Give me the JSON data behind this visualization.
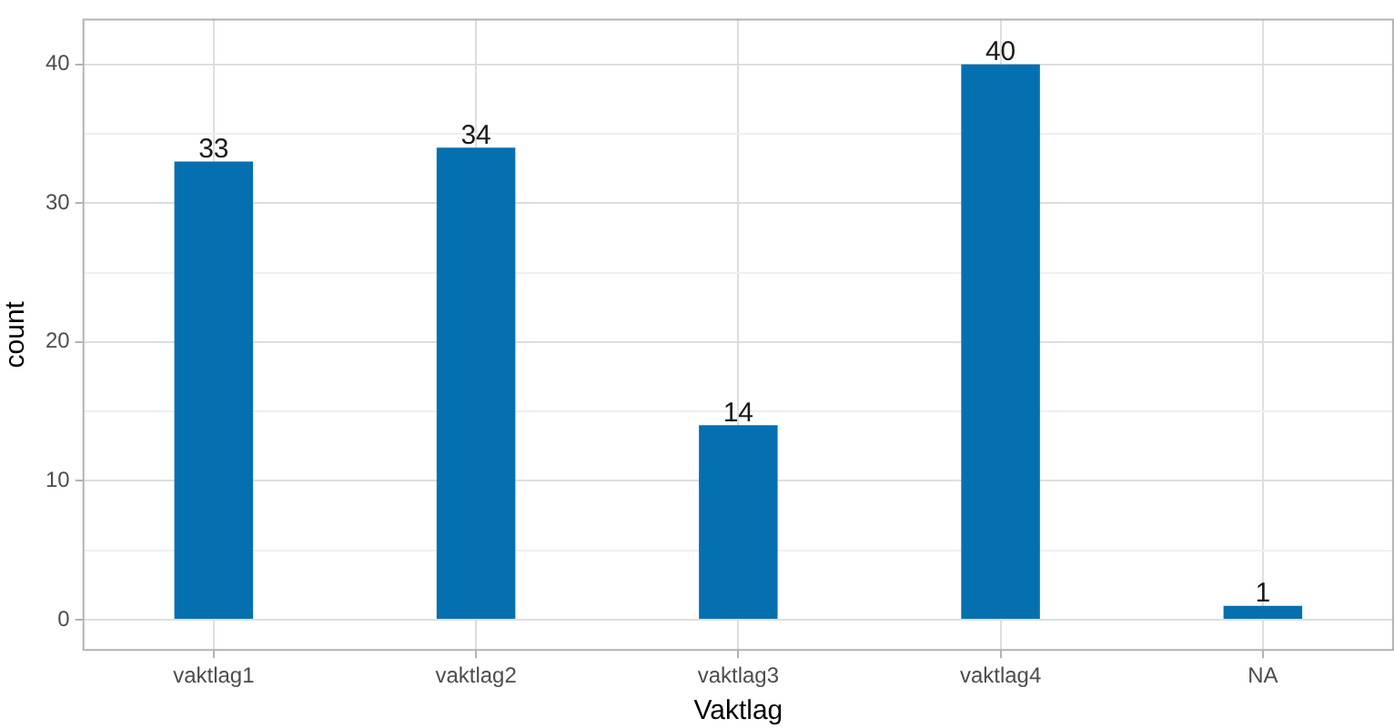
{
  "chart_data": {
    "type": "bar",
    "xlabel": "Vaktlag",
    "ylabel": "count",
    "categories": [
      "vaktlag1",
      "vaktlag2",
      "vaktlag3",
      "vaktlag4",
      "NA"
    ],
    "values": [
      33,
      34,
      14,
      40,
      1
    ],
    "color": "#0570b0",
    "ylim": [
      -2.25,
      43.3
    ],
    "yticks": [
      0,
      {
        "value": 5,
        "label": null
      },
      10,
      {
        "value": 15,
        "label": null
      },
      20,
      {
        "value": 25,
        "label": null
      },
      30,
      {
        "value": 35,
        "label": null
      },
      40
    ],
    "grid": true,
    "data_labels": true,
    "legend": false
  }
}
